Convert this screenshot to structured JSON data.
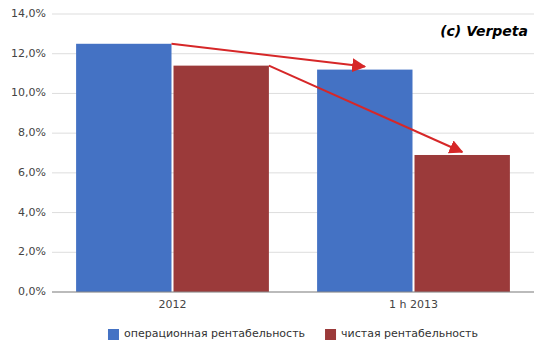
{
  "chart_data": {
    "type": "bar",
    "title": "(c) Verpeta",
    "categories": [
      "2012",
      "1 h 2013"
    ],
    "series": [
      {
        "name": "операционная рентабельность",
        "color": "#4472C4",
        "values": [
          0.125,
          0.112
        ]
      },
      {
        "name": "чистая рентабельность",
        "color": "#9B3A3A",
        "values": [
          0.114,
          0.069
        ]
      }
    ],
    "ylim": [
      0,
      0.14
    ],
    "yticks": [
      {
        "value": 0.0,
        "label": "0,0%"
      },
      {
        "value": 0.02,
        "label": "2,0%"
      },
      {
        "value": 0.04,
        "label": "4,0%"
      },
      {
        "value": 0.06,
        "label": "6,0%"
      },
      {
        "value": 0.08,
        "label": "8,0%"
      },
      {
        "value": 0.1,
        "label": "10,0%"
      },
      {
        "value": 0.12,
        "label": "12,0%"
      },
      {
        "value": 0.14,
        "label": "14,0%"
      }
    ],
    "grid": true,
    "legend": "bottom"
  }
}
